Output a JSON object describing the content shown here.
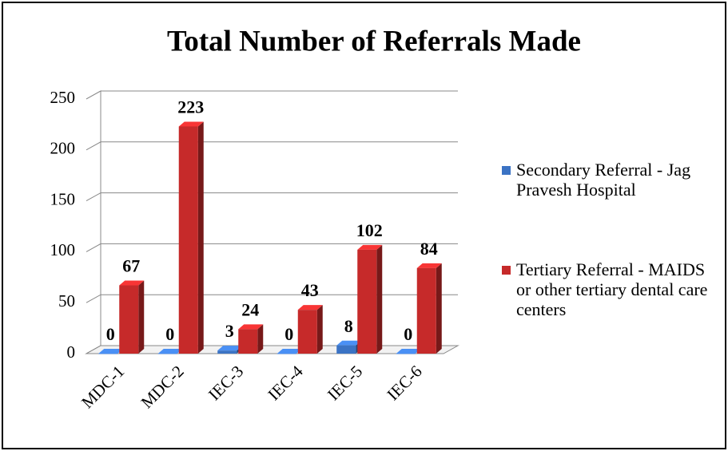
{
  "chart_data": {
    "type": "bar",
    "title": "Total Number of Referrals Made",
    "categories": [
      "MDC-1",
      "MDC-2",
      "IEC-3",
      "IEC-4",
      "IEC-5",
      "IEC-6"
    ],
    "series": [
      {
        "name": "Secondary Referral - Jag Pravesh Hospital",
        "color": "#3b73c4",
        "values": [
          0,
          0,
          3,
          0,
          8,
          0
        ]
      },
      {
        "name": "Tertiary Referral - MAIDS or other tertiary dental care centers",
        "color": "#c62a2a",
        "values": [
          67,
          223,
          24,
          43,
          102,
          84
        ]
      }
    ],
    "ylim": [
      0,
      250
    ],
    "yticks": [
      0,
      50,
      100,
      150,
      200,
      250
    ],
    "grid": true,
    "legend": "right"
  }
}
